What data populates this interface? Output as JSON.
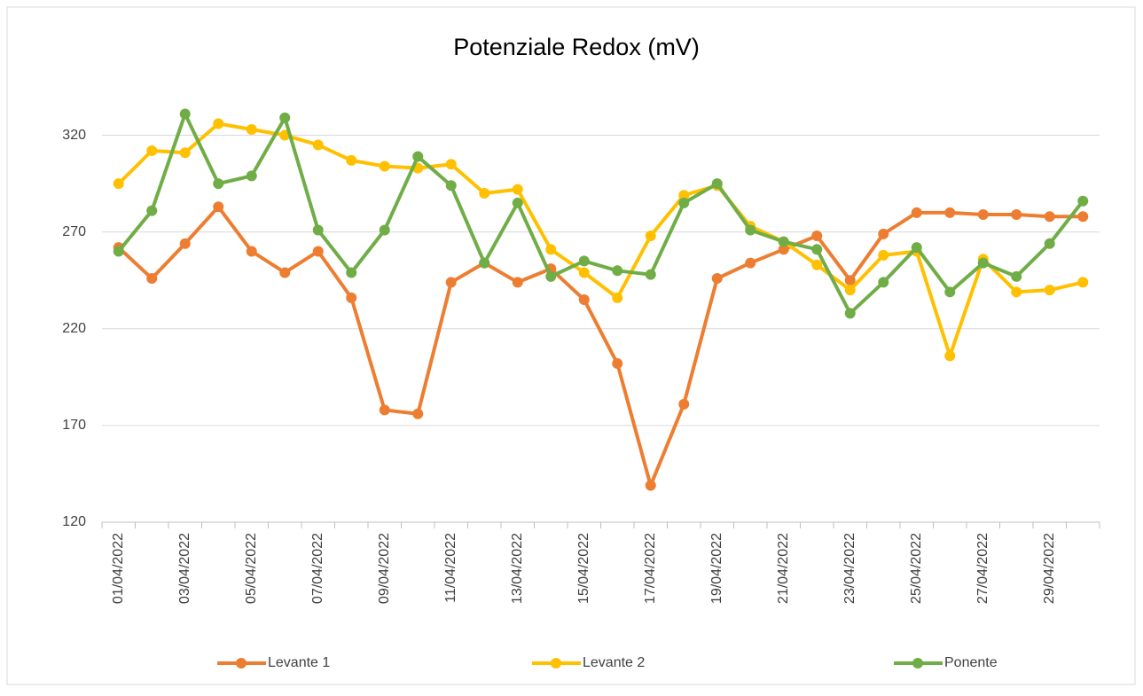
{
  "chart_data": {
    "type": "line",
    "title": "Potenziale Redox (mV)",
    "categories": [
      "01/04/2022",
      null,
      "03/04/2022",
      null,
      "05/04/2022",
      null,
      "07/04/2022",
      null,
      "09/04/2022",
      null,
      "11/04/2022",
      null,
      "13/04/2022",
      null,
      "15/04/2022",
      null,
      "17/04/2022",
      null,
      "19/04/2022",
      null,
      "21/04/2022",
      null,
      "23/04/2022",
      null,
      "25/04/2022",
      null,
      "27/04/2022",
      null,
      "29/04/2022",
      null
    ],
    "series": [
      {
        "name": "Levante 1",
        "color": "#ED7D31",
        "values": [
          262,
          246,
          264,
          283,
          260,
          249,
          260,
          236,
          178,
          176,
          244,
          254,
          244,
          251,
          235,
          202,
          139,
          181,
          246,
          254,
          261,
          268,
          245,
          269,
          280,
          280,
          279,
          279,
          278,
          278
        ]
      },
      {
        "name": "Levante 2",
        "color": "#FFC000",
        "values": [
          295,
          312,
          311,
          326,
          323,
          320,
          315,
          307,
          304,
          303,
          305,
          290,
          292,
          261,
          249,
          236,
          268,
          289,
          294,
          273,
          265,
          253,
          240,
          258,
          260,
          206,
          256,
          239,
          240,
          244
        ]
      },
      {
        "name": "Ponente",
        "color": "#70AD47",
        "values": [
          260,
          281,
          331,
          295,
          299,
          329,
          271,
          249,
          271,
          309,
          294,
          254,
          285,
          247,
          255,
          250,
          248,
          285,
          295,
          271,
          265,
          261,
          228,
          244,
          262,
          239,
          254,
          247,
          264,
          286
        ]
      }
    ],
    "ylim": [
      120,
      345
    ],
    "yticks": [
      120,
      170,
      220,
      270,
      320
    ],
    "grid": true,
    "legend": "bottom"
  }
}
